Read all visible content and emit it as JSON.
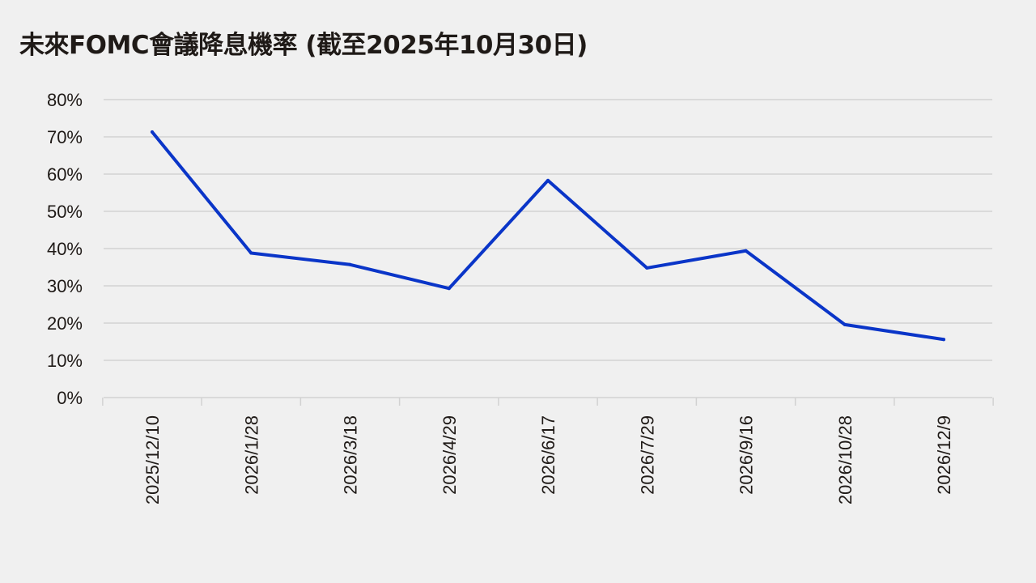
{
  "chart_data": {
    "type": "line",
    "title": "未來FOMC會議降息機率 (截至2025年10月30日)",
    "categories": [
      "2025/12/10",
      "2026/1/28",
      "2026/3/18",
      "2026/4/29",
      "2026/6/17",
      "2026/7/29",
      "2026/9/16",
      "2026/10/28",
      "2026/12/9"
    ],
    "series": [
      {
        "values": [
          71.3,
          38.8,
          35.7,
          29.3,
          58.3,
          34.8,
          39.4,
          19.6,
          15.6
        ],
        "color": "#0a35c8"
      }
    ],
    "ylim": [
      0,
      80
    ],
    "yticks": [
      0,
      10,
      20,
      30,
      40,
      50,
      60,
      70,
      80
    ],
    "ytick_format": "percent",
    "grid": true,
    "legend": "none"
  }
}
